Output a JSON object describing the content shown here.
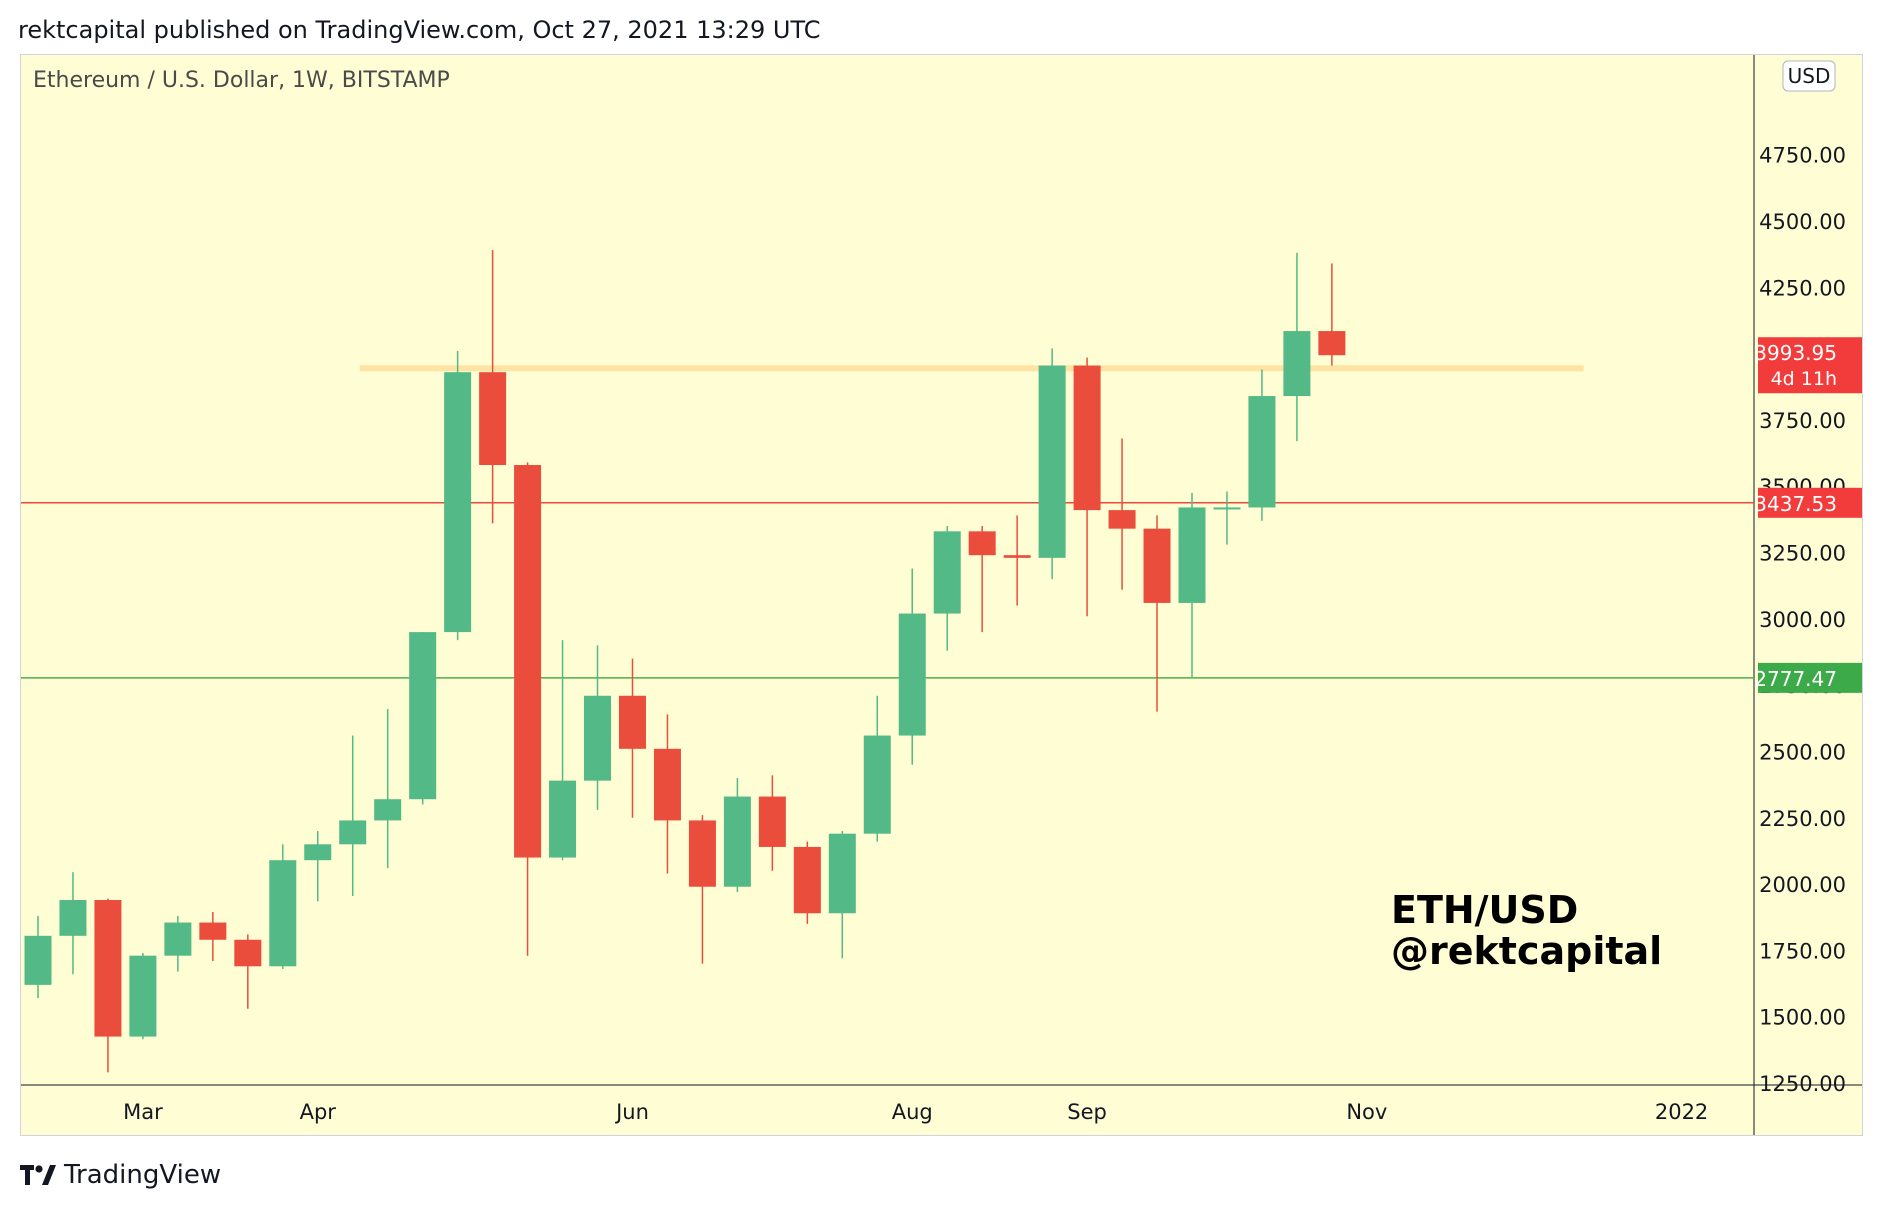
{
  "header": {
    "published_text": "rektcapital published on TradingView.com, Oct 27, 2021 13:29 UTC"
  },
  "footer": {
    "brand": "TradingView"
  },
  "colors": {
    "background": "#FFFDD4",
    "up": "#53B987",
    "down": "#EB4D3D",
    "resistance_band": "#FFE3A3",
    "red_line": "#E74C3C",
    "green_line": "#4CAF50",
    "price_tag_red": "#F23B3B",
    "price_tag_green": "#3DAA4A"
  },
  "chart_data": {
    "type": "candlestick",
    "title": "Ethereum / U.S. Dollar, 1W, BITSTAMP",
    "annotation_line1": "ETH/USD",
    "annotation_line2": "@rektcapital",
    "currency_badge": "USD",
    "ylim": [
      1250,
      4960
    ],
    "y_ticks": [
      "4750.00",
      "4500.00",
      "4250.00",
      "4000.00",
      "3750.00",
      "3500.00",
      "3250.00",
      "3000.00",
      "2750.00",
      "2500.00",
      "2250.00",
      "2000.00",
      "1750.00",
      "1500.00",
      "1250.00"
    ],
    "x_ticks": [
      {
        "label": "Mar",
        "index": 3
      },
      {
        "label": "Apr",
        "index": 8
      },
      {
        "label": "Jun",
        "index": 17
      },
      {
        "label": "Aug",
        "index": 25
      },
      {
        "label": "Sep",
        "index": 30
      },
      {
        "label": "Nov",
        "index": 38
      },
      {
        "label": "2022",
        "index": 47
      }
    ],
    "x_range": [
      0,
      49.5
    ],
    "candles": [
      {
        "o": 1620,
        "h": 1880,
        "l": 1570,
        "c": 1805
      },
      {
        "o": 1805,
        "h": 2045,
        "l": 1660,
        "c": 1940
      },
      {
        "o": 1940,
        "h": 1945,
        "l": 1290,
        "c": 1425
      },
      {
        "o": 1425,
        "h": 1740,
        "l": 1415,
        "c": 1730
      },
      {
        "o": 1730,
        "h": 1880,
        "l": 1670,
        "c": 1855
      },
      {
        "o": 1855,
        "h": 1895,
        "l": 1710,
        "c": 1790
      },
      {
        "o": 1790,
        "h": 1810,
        "l": 1530,
        "c": 1690
      },
      {
        "o": 1690,
        "h": 2150,
        "l": 1680,
        "c": 2090
      },
      {
        "o": 2090,
        "h": 2200,
        "l": 1935,
        "c": 2150
      },
      {
        "o": 2150,
        "h": 2560,
        "l": 1955,
        "c": 2240
      },
      {
        "o": 2240,
        "h": 2660,
        "l": 2060,
        "c": 2320
      },
      {
        "o": 2320,
        "h": 2950,
        "l": 2300,
        "c": 2950
      },
      {
        "o": 2950,
        "h": 4010,
        "l": 2920,
        "c": 3930
      },
      {
        "o": 3930,
        "h": 4390,
        "l": 3360,
        "c": 3580
      },
      {
        "o": 3580,
        "h": 3590,
        "l": 1730,
        "c": 2100
      },
      {
        "o": 2100,
        "h": 2920,
        "l": 2090,
        "c": 2390
      },
      {
        "o": 2390,
        "h": 2900,
        "l": 2280,
        "c": 2710
      },
      {
        "o": 2710,
        "h": 2850,
        "l": 2250,
        "c": 2510
      },
      {
        "o": 2510,
        "h": 2640,
        "l": 2040,
        "c": 2240
      },
      {
        "o": 2240,
        "h": 2260,
        "l": 1700,
        "c": 1990
      },
      {
        "o": 1990,
        "h": 2400,
        "l": 1970,
        "c": 2330
      },
      {
        "o": 2330,
        "h": 2410,
        "l": 2050,
        "c": 2140
      },
      {
        "o": 2140,
        "h": 2160,
        "l": 1850,
        "c": 1890
      },
      {
        "o": 1890,
        "h": 2200,
        "l": 1720,
        "c": 2190
      },
      {
        "o": 2190,
        "h": 2710,
        "l": 2160,
        "c": 2560
      },
      {
        "o": 2560,
        "h": 3190,
        "l": 2450,
        "c": 3020
      },
      {
        "o": 3020,
        "h": 3350,
        "l": 2880,
        "c": 3330
      },
      {
        "o": 3330,
        "h": 3350,
        "l": 2950,
        "c": 3240
      },
      {
        "o": 3240,
        "h": 3390,
        "l": 3050,
        "c": 3230
      },
      {
        "o": 3230,
        "h": 4020,
        "l": 3150,
        "c": 3955
      },
      {
        "o": 3955,
        "h": 3985,
        "l": 3010,
        "c": 3410
      },
      {
        "o": 3410,
        "h": 3680,
        "l": 3110,
        "c": 3340
      },
      {
        "o": 3340,
        "h": 3390,
        "l": 2650,
        "c": 3060
      },
      {
        "o": 3060,
        "h": 3475,
        "l": 2780,
        "c": 3420
      },
      {
        "o": 3420,
        "h": 3480,
        "l": 3280,
        "c": 3420
      },
      {
        "o": 3420,
        "h": 3940,
        "l": 3370,
        "c": 3840
      },
      {
        "o": 3840,
        "h": 4380,
        "l": 3670,
        "c": 4085
      },
      {
        "o": 4085,
        "h": 4340,
        "l": 3955,
        "c": 3993.95
      }
    ],
    "resistance_band": {
      "y": 3945,
      "x_start": 9.2,
      "x_end": 44.2
    },
    "horizontal_lines": [
      {
        "value": 3437.53,
        "label": "3437.53",
        "color": "#E74C3C"
      },
      {
        "value": 2777.47,
        "label": "2777.47",
        "color": "#4CAF50"
      }
    ],
    "last_price": {
      "value": 3993.95,
      "label": "3993.95",
      "countdown": "4d 11h"
    }
  }
}
